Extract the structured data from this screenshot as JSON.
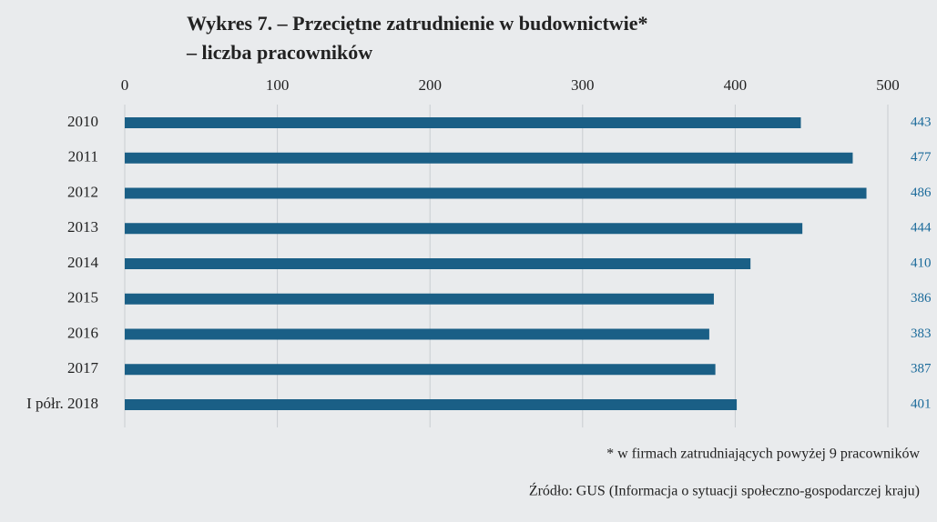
{
  "chart_data": {
    "type": "bar",
    "orientation": "horizontal",
    "title": "Wykres 7. – Przeciętne zatrudnienie w budownictwie*",
    "subtitle": "– liczba pracowników",
    "categories": [
      "2010",
      "2011",
      "2012",
      "2013",
      "2014",
      "2015",
      "2016",
      "2017",
      "I półr. 2018"
    ],
    "values": [
      443,
      477,
      486,
      444,
      410,
      386,
      383,
      387,
      401
    ],
    "color": "#1a5f86",
    "xlim": [
      0,
      500
    ],
    "xticks": [
      0,
      100,
      200,
      300,
      400,
      500
    ],
    "grid": true,
    "footnote": "* w firmach zatrudniających powyżej 9 pracowników",
    "source": "Źródło: GUS (Informacja o sytuacji społeczno-gospodarczej kraju)"
  }
}
